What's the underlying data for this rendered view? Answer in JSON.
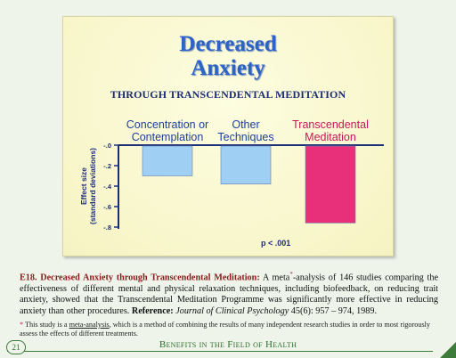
{
  "chart_data": {
    "type": "bar",
    "title_line1": "Decreased",
    "title_line2": "Anxiety",
    "subtitle": "THROUGH TRANSCENDENTAL MEDITATION",
    "categories": [
      "Concentration or\nContemplation",
      "Other\nTechniques",
      "Transcendental\nMeditation"
    ],
    "values": [
      -0.3,
      -0.38,
      -0.76
    ],
    "bar_colors": [
      "#9fd0f4",
      "#9fd0f4",
      "#e8307a"
    ],
    "category_colors": [
      "#1c3f9e",
      "#1c3f9e",
      "#c2185b"
    ],
    "ylabel_line1": "Effect size",
    "ylabel_line2": "(standard deviations)",
    "ylim": [
      -0.8,
      0
    ],
    "yticks": [
      -0.0,
      -0.2,
      -0.4,
      -0.6,
      -0.8
    ],
    "ytick_labels": [
      "-.0",
      "-.2",
      "-.4",
      "-.6",
      "-.8"
    ],
    "annotation": "p < .001",
    "grid": false,
    "axis_color": "#1c2d78"
  },
  "caption": {
    "lead": "E18. Decreased Anxiety through Transcendental Meditation:",
    "body_before_star": " A meta",
    "star": "*",
    "body": "-analysis of 146 studies comparing the effectiveness of different mental and physical relaxation techniques, including biofeedback, on reducing trait anxiety, showed that the Transcendental Meditation Programme was significantly more effective in reducing anxiety than other procedures. ",
    "reference_label": "Reference:",
    "journal": "Journal of Clinical Psychology",
    "citation": " 45(6): 957 – 974, 1989."
  },
  "footnote": {
    "star": "*",
    "before": " This study is a ",
    "term": "meta-analysis",
    "after": ", which is a method of combining the results of many independent research studies in order to most rigorously assess the effects of different treatments."
  },
  "footer": {
    "page_number": "21",
    "section": "Benefits in the Field of Health"
  }
}
